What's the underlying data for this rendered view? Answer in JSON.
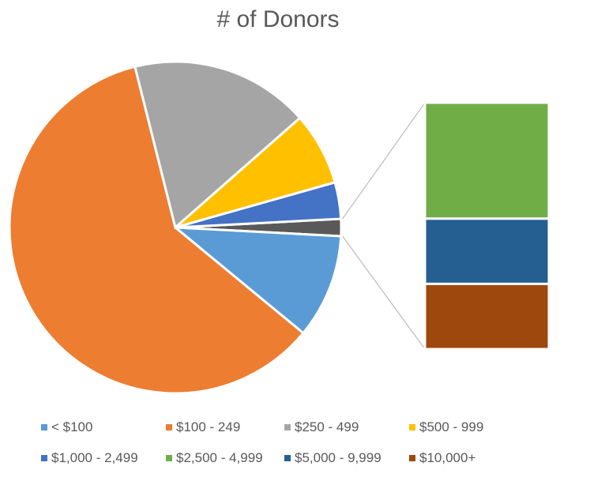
{
  "chart_data": {
    "type": "pie",
    "title": "# of Donors",
    "subtype": "bar-of-pie",
    "categories": [
      "< $100",
      "$100 - 249",
      "$250 - 499",
      "$500 - 999",
      "$1,000 - 2,499",
      "$2,500 - 4,999",
      "$5,000 - 9,999",
      "$10,000+"
    ],
    "values": [
      10.3,
      61.0,
      17.7,
      7.2,
      3.6,
      0.8,
      0.45,
      0.45
    ],
    "secondary_categories": [
      "$2,500 - 4,999",
      "$5,000 - 9,999",
      "$10,000+"
    ],
    "colors": [
      "#5B9BD5",
      "#ED7D31",
      "#A5A5A5",
      "#FFC000",
      "#4472C4",
      "#70AD47",
      "#255E91",
      "#9E480E"
    ],
    "other_color": "#595959",
    "legend_position": "bottom",
    "grid": false
  }
}
